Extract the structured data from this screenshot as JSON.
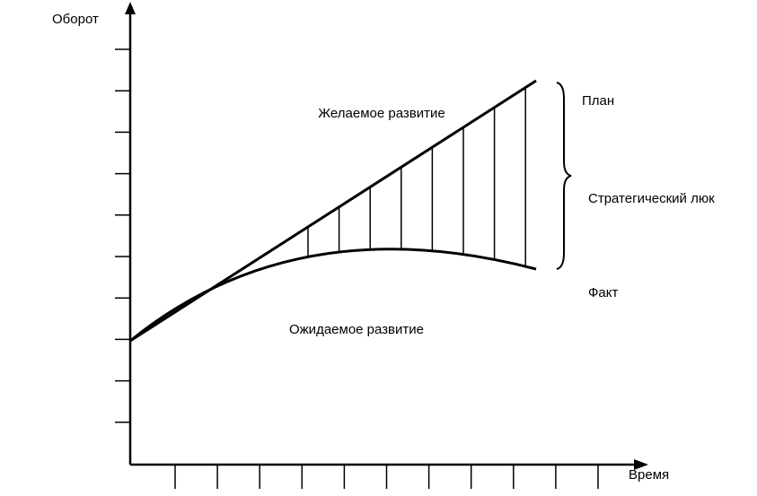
{
  "axes": {
    "y_label": "Оборот",
    "x_label": "Время"
  },
  "labels": {
    "desired": "Желаемое развитие",
    "plan": "План",
    "gap": "Стратегический люк",
    "fact": "Факт",
    "expected": "Ожидаемое развитие"
  }
}
